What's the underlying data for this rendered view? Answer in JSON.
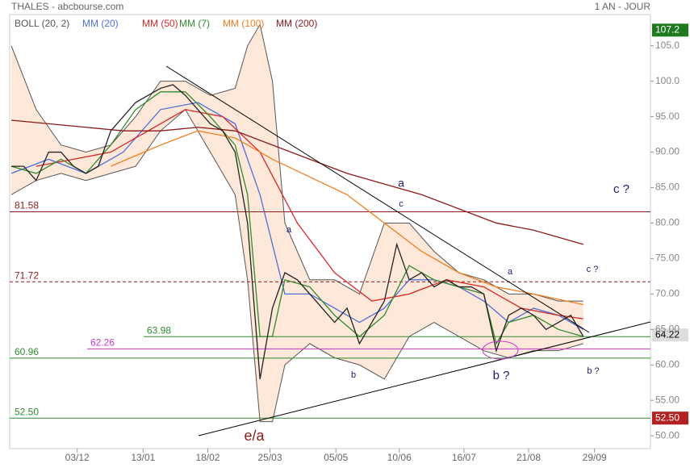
{
  "chart_data": {
    "type": "line",
    "title": "THALES - abcbourse.com",
    "period": "1 AN - JOUR",
    "xlim": [
      -0.13,
      51.4
    ],
    "ylim": [
      48.2,
      109.4
    ],
    "xticks": [
      {
        "value": 5.3,
        "label": "03/12"
      },
      {
        "value": 10.6,
        "label": "13/01"
      },
      {
        "value": 15.8,
        "label": "18/02"
      },
      {
        "value": 20.8,
        "label": "25/03"
      },
      {
        "value": 26.1,
        "label": "05/05"
      },
      {
        "value": 31.2,
        "label": "10/06"
      },
      {
        "value": 36.4,
        "label": "16/07"
      },
      {
        "value": 41.6,
        "label": "21/08"
      },
      {
        "value": 46.9,
        "label": "29/09"
      }
    ],
    "yticks": [
      {
        "value": 50,
        "label": "50.00"
      },
      {
        "value": 55,
        "label": "55.00"
      },
      {
        "value": 60,
        "label": "60.00"
      },
      {
        "value": 65,
        "label": "65.00"
      },
      {
        "value": 70,
        "label": "70.00"
      },
      {
        "value": 75,
        "label": "75.00"
      },
      {
        "value": 80,
        "label": "80.00"
      },
      {
        "value": 85,
        "label": "85.00"
      },
      {
        "value": 90,
        "label": "90.00"
      },
      {
        "value": 95,
        "label": "95.00"
      },
      {
        "value": 100,
        "label": "100.0"
      },
      {
        "value": 105,
        "label": "105.0"
      }
    ],
    "bands": {
      "name": "BOLL (20, 2)",
      "color": "#fde4d2",
      "x": [
        0,
        2,
        4,
        6,
        8,
        10,
        12,
        14,
        16,
        18,
        19,
        20,
        21,
        22,
        24,
        26,
        28,
        30,
        32,
        34,
        36,
        38,
        40,
        42,
        44,
        46
      ],
      "upper": [
        105,
        96,
        91,
        90,
        91,
        95,
        100,
        100,
        98,
        99,
        105,
        108,
        100,
        80,
        72,
        72,
        70,
        80,
        80,
        76,
        73,
        72,
        70,
        70,
        69,
        69
      ],
      "lower": [
        84,
        86,
        87,
        86,
        87,
        88,
        93,
        96,
        90,
        84,
        72,
        52,
        52,
        60,
        63,
        61,
        60,
        58,
        64,
        66,
        64,
        62,
        61,
        62,
        62,
        63
      ]
    },
    "price": {
      "color": "#222222",
      "x": [
        0,
        1,
        2,
        3,
        4,
        5,
        6,
        7,
        8,
        9,
        10,
        11,
        12,
        13,
        14,
        15,
        16,
        17,
        18,
        19,
        20,
        21,
        22,
        23,
        24,
        25,
        26,
        27,
        28,
        29,
        30,
        31,
        32,
        33,
        34,
        35,
        36,
        37,
        38,
        39,
        40,
        41,
        42,
        43,
        44,
        45,
        46
      ],
      "values": [
        88,
        88,
        86,
        90,
        90,
        88,
        87,
        88,
        93,
        95,
        97,
        98,
        99,
        99.5,
        98,
        96,
        94,
        93,
        90,
        80,
        58,
        68,
        73,
        72,
        70,
        68,
        66,
        68,
        63,
        66,
        69,
        77,
        72,
        73,
        71,
        72,
        71,
        71,
        70,
        62,
        67,
        68,
        67,
        65,
        66,
        67,
        64
      ]
    },
    "series": [
      {
        "name": "MM (20)",
        "color": "#4f6fd8",
        "x": [
          0,
          3,
          6,
          9,
          12,
          15,
          18,
          20,
          22,
          24,
          26,
          28,
          30,
          32,
          34,
          36,
          38,
          40,
          42,
          44,
          46
        ],
        "values": [
          87,
          89,
          87,
          90,
          96,
          97,
          94,
          84,
          70,
          70,
          68,
          66,
          68,
          72,
          72,
          71,
          69,
          66,
          68,
          67,
          65
        ]
      },
      {
        "name": "MM (50)",
        "color": "#d62728",
        "x": [
          2,
          5,
          8,
          11,
          14,
          17,
          20,
          23,
          26,
          29,
          32,
          35,
          38,
          41,
          44,
          46
        ],
        "values": [
          88,
          89,
          90,
          93,
          96,
          95,
          90,
          80,
          73,
          69,
          70,
          72,
          71,
          68,
          67,
          66.5
        ]
      },
      {
        "name": "MM (7)",
        "color": "#2e8b2e",
        "x": [
          0,
          2,
          4,
          6,
          8,
          10,
          12,
          14,
          16,
          18,
          19,
          20,
          21,
          22,
          24,
          26,
          28,
          30,
          32,
          34,
          36,
          38,
          39,
          40,
          42,
          44,
          46
        ],
        "values": [
          88,
          87,
          89,
          87,
          91,
          96,
          98.5,
          98.5,
          95,
          91,
          84,
          64,
          64,
          72,
          71,
          67,
          64,
          67,
          74,
          72,
          71,
          70,
          63,
          66,
          67,
          65,
          64
        ]
      },
      {
        "name": "MM (100)",
        "color": "#f07f22",
        "x": [
          8,
          12,
          15,
          18,
          21,
          24,
          27,
          30,
          33,
          36,
          39,
          42,
          46
        ],
        "values": [
          88,
          91,
          93,
          92,
          89,
          86.5,
          84,
          80,
          76,
          73,
          71,
          70,
          68.5
        ]
      },
      {
        "name": "MM (200)",
        "color": "#8b1a1a",
        "x": [
          0,
          3,
          6,
          9,
          12,
          15,
          18,
          21,
          24,
          27,
          30,
          33,
          36,
          39,
          42,
          46
        ],
        "values": [
          94.5,
          94,
          93.5,
          93,
          93,
          93.5,
          93,
          91,
          89,
          87,
          85.5,
          84,
          82,
          80,
          79,
          77
        ]
      }
    ],
    "levels": [
      {
        "value": 81.58,
        "label": "81.58",
        "color": "#8b1a1a",
        "dashed": false
      },
      {
        "value": 71.72,
        "label": "71.72",
        "color": "#8b1a1a",
        "dashed": true
      },
      {
        "value": 63.98,
        "label": "63.98",
        "color": "#2e8b2e",
        "dashed": false
      },
      {
        "value": 62.26,
        "label": "62.26",
        "color": "#cc33cc",
        "dashed": false
      },
      {
        "value": 60.96,
        "label": "60.96",
        "color": "#2e8b2e",
        "dashed": false
      },
      {
        "value": 52.5,
        "label": "52.50",
        "color": "#2e8b2e",
        "dashed": false
      }
    ],
    "price_tags": [
      {
        "value": 107.2,
        "label": "107.2",
        "color": "#1f7a1f"
      },
      {
        "value": 64.22,
        "label": "64.22",
        "color": "#dddddd"
      },
      {
        "value": 52.5,
        "label": "52.50",
        "color": "#b22222"
      }
    ],
    "annotations": [
      "a",
      "c",
      "a",
      "b",
      "e/a",
      "b ?",
      "c ?",
      "c ?",
      "a",
      "b ?"
    ]
  }
}
